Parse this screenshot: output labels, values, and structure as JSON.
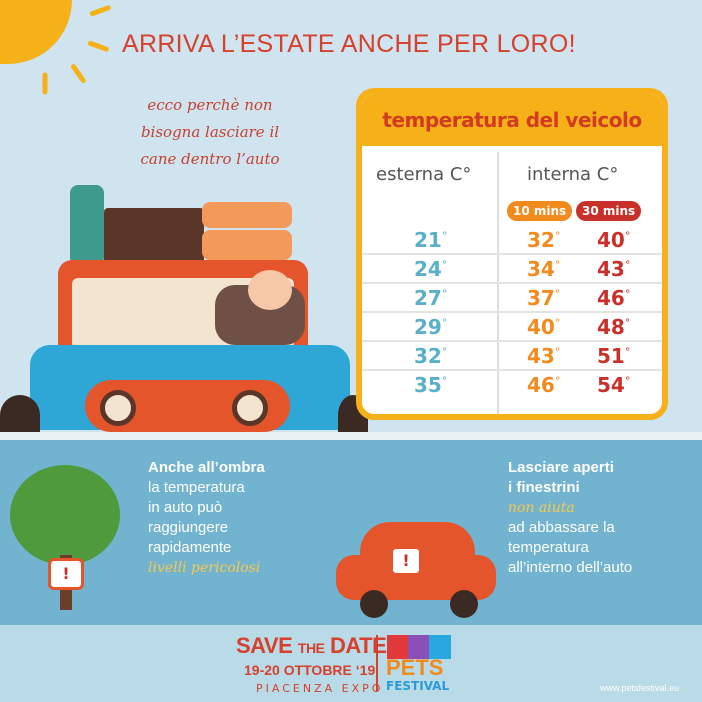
{
  "title": "ARRIVA L’ESTATE ANCHE PER LORO!",
  "subtitle": [
    "ecco perchè non",
    "bisogna lasciare il",
    "cane dentro l’auto"
  ],
  "table": {
    "heading": "temperatura del veicolo",
    "col_external": "esterna C°",
    "col_internal": "interna C°",
    "badge_10": "10 mins",
    "badge_30": "30 mins",
    "colors": {
      "external": "#5aafc9",
      "ten": "#f28a1e",
      "thirty": "#c9302a",
      "frame": "#f7b118"
    },
    "rows": [
      {
        "ext": "21",
        "m10": "32",
        "m30": "40"
      },
      {
        "ext": "24",
        "m10": "34",
        "m30": "43"
      },
      {
        "ext": "27",
        "m10": "37",
        "m30": "46"
      },
      {
        "ext": "29",
        "m10": "40",
        "m30": "48"
      },
      {
        "ext": "32",
        "m10": "43",
        "m30": "51"
      },
      {
        "ext": "35",
        "m10": "46",
        "m30": "54"
      }
    ]
  },
  "left_note": {
    "bold": "Anche all’ombra",
    "lines": [
      "la temperatura",
      "in auto può",
      "raggiungere",
      "rapidamente"
    ],
    "highlight": "livelli pericolosi"
  },
  "right_note": {
    "bold": [
      "Lasciare aperti",
      "i finestrini"
    ],
    "highlight": "non aiuta",
    "lines": [
      "ad abbassare la",
      "temperatura",
      "all’interno dell’auto"
    ]
  },
  "footer": {
    "save": "SAVE",
    "the": "THE",
    "date": "DATE",
    "dates": "19-20 OTTOBRE ‘19",
    "venue": "PIACENZA EXPO",
    "logo_pets": "PETS",
    "logo_festival": "FESTIVAL",
    "url": "www.petsfestival.eu"
  },
  "warning_icon": "!"
}
